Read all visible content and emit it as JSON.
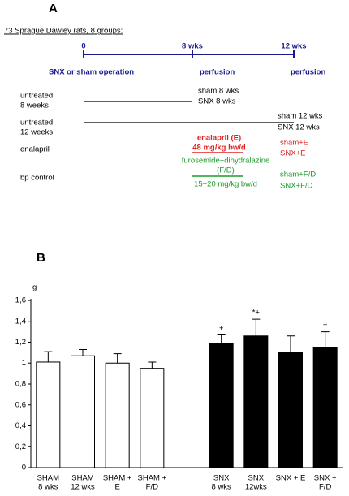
{
  "panel_a": {
    "label": "A",
    "heading": "73 Sprague Dawley rats, 8 groups:",
    "timeline": [
      "0",
      "8 wks",
      "12 wks"
    ],
    "events": [
      "SNX or sham operation",
      "perfusion",
      "perfusion"
    ],
    "groups": [
      {
        "label": [
          "untreated",
          "8 weeks"
        ],
        "outcomes": [
          "sham 8 wks",
          "SNX 8 wks"
        ]
      },
      {
        "label": [
          "untreated",
          "12 weeks"
        ],
        "outcomes": [
          "sham 12 wks",
          "SNX 12 wks"
        ]
      },
      {
        "label": [
          "enalapril"
        ],
        "treatment": [
          "enalapril (E)",
          "48 mg/kg bw/d"
        ],
        "outcomes": [
          "sham+E",
          "SNX+E"
        ]
      },
      {
        "label": [
          "bp control"
        ],
        "treatment": [
          "furosemide+dihydralazine",
          "(F/D)",
          "15+20 mg/kg bw/d"
        ],
        "outcomes": [
          "sham+F/D",
          "SNX+F/D"
        ]
      }
    ]
  },
  "panel_b_label": "B",
  "chart_data": {
    "type": "bar",
    "y_label": "g",
    "categories": [
      [
        "SHAM",
        "8 wks"
      ],
      [
        "SHAM",
        "12 wks"
      ],
      [
        "SHAM +",
        "E"
      ],
      [
        "SHAM +",
        "F/D"
      ],
      null,
      [
        "SNX",
        "8 wks"
      ],
      [
        "SNX",
        "12wks"
      ],
      [
        "SNX + E"
      ],
      [
        "SNX +",
        "F/D"
      ]
    ],
    "values": [
      1.01,
      1.07,
      1.0,
      0.95,
      null,
      1.19,
      1.26,
      1.1,
      1.15
    ],
    "errors": [
      0.1,
      0.06,
      0.09,
      0.06,
      null,
      0.08,
      0.16,
      0.16,
      0.15
    ],
    "colors": [
      "#ffffff",
      "#ffffff",
      "#ffffff",
      "#ffffff",
      null,
      "#000000",
      "#000000",
      "#000000",
      "#000000"
    ],
    "edgecolor": "#000000",
    "annotations": [
      null,
      null,
      null,
      null,
      null,
      "+",
      "*+",
      null,
      "+"
    ],
    "ylim": [
      0,
      1.6
    ],
    "yticks": [
      0,
      {
        "value": 0.2,
        "label": "0,2"
      },
      {
        "value": 0.4,
        "label": "0,4"
      },
      {
        "value": 0.6,
        "label": "0,6"
      },
      {
        "value": 0.8,
        "label": "0,8"
      },
      1,
      {
        "value": 1.2,
        "label": "1,2"
      },
      {
        "value": 1.4,
        "label": "1,4"
      },
      {
        "value": 1.6,
        "label": "1,6"
      }
    ],
    "grid": false
  }
}
